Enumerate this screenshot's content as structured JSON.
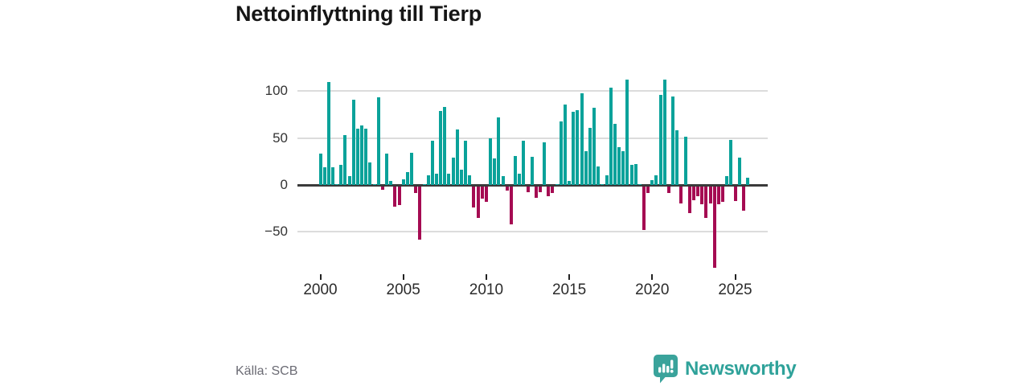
{
  "title": "Nettoinflyttning till Tierp",
  "source": "Källa: SCB",
  "branding": {
    "wordmark": "Newsworthy",
    "logo_icon": "speech-bubble-bar-chart-icon"
  },
  "colors": {
    "positive": "#0aa29a",
    "negative": "#a50b52",
    "axis": "#3a3a3a",
    "grid": "#dcdcdc",
    "tick": "#222222",
    "label": "#333333",
    "title_text": "#161616",
    "muted_text": "#6b6b74",
    "brand": "#2fa29a",
    "background": "#ffffff"
  },
  "chart_data": {
    "type": "bar",
    "title": "Nettoinflyttning till Tierp",
    "xlabel": "",
    "ylabel": "",
    "frequency": "quarterly",
    "start": "2000 Q1",
    "end": "2025 Q4",
    "grid": "horizontal",
    "legend": "none",
    "ylim": [
      -95,
      120
    ],
    "yticks": [
      {
        "label": "100",
        "value": 100
      },
      {
        "label": "50",
        "value": 50
      },
      {
        "label": "0",
        "value": 0
      },
      {
        "label": "−50",
        "value": -50
      }
    ],
    "xticks": [
      {
        "label": "2000",
        "q": 0
      },
      {
        "label": "2005",
        "q": 20
      },
      {
        "label": "2010",
        "q": 40
      },
      {
        "label": "2015",
        "q": 60
      },
      {
        "label": "2020",
        "q": 80
      },
      {
        "label": "2025",
        "q": 100
      }
    ],
    "categories": [
      "2000 Q1",
      "2000 Q2",
      "2000 Q3",
      "2000 Q4",
      "2001 Q1",
      "2001 Q2",
      "2001 Q3",
      "2001 Q4",
      "2002 Q1",
      "2002 Q2",
      "2002 Q3",
      "2002 Q4",
      "2003 Q1",
      "2003 Q2",
      "2003 Q3",
      "2003 Q4",
      "2004 Q1",
      "2004 Q2",
      "2004 Q3",
      "2004 Q4",
      "2005 Q1",
      "2005 Q2",
      "2005 Q3",
      "2005 Q4",
      "2006 Q1",
      "2006 Q2",
      "2006 Q3",
      "2006 Q4",
      "2007 Q1",
      "2007 Q2",
      "2007 Q3",
      "2007 Q4",
      "2008 Q1",
      "2008 Q2",
      "2008 Q3",
      "2008 Q4",
      "2009 Q1",
      "2009 Q2",
      "2009 Q3",
      "2009 Q4",
      "2010 Q1",
      "2010 Q2",
      "2010 Q3",
      "2010 Q4",
      "2011 Q1",
      "2011 Q2",
      "2011 Q3",
      "2011 Q4",
      "2012 Q1",
      "2012 Q2",
      "2012 Q3",
      "2012 Q4",
      "2013 Q1",
      "2013 Q2",
      "2013 Q3",
      "2013 Q4",
      "2014 Q1",
      "2014 Q2",
      "2014 Q3",
      "2014 Q4",
      "2015 Q1",
      "2015 Q2",
      "2015 Q3",
      "2015 Q4",
      "2016 Q1",
      "2016 Q2",
      "2016 Q3",
      "2016 Q4",
      "2017 Q1",
      "2017 Q2",
      "2017 Q3",
      "2017 Q4",
      "2018 Q1",
      "2018 Q2",
      "2018 Q3",
      "2018 Q4",
      "2019 Q1",
      "2019 Q2",
      "2019 Q3",
      "2019 Q4",
      "2020 Q1",
      "2020 Q2",
      "2020 Q3",
      "2020 Q4",
      "2021 Q1",
      "2021 Q2",
      "2021 Q3",
      "2021 Q4",
      "2022 Q1",
      "2022 Q2",
      "2022 Q3",
      "2022 Q4",
      "2023 Q1",
      "2023 Q2",
      "2023 Q3",
      "2023 Q4",
      "2024 Q1",
      "2024 Q2",
      "2024 Q3",
      "2024 Q4",
      "2025 Q1",
      "2025 Q2",
      "2025 Q3",
      "2025 Q4"
    ],
    "values": [
      33,
      19,
      110,
      19,
      1,
      21,
      53,
      9,
      91,
      60,
      63,
      60,
      24,
      1,
      93,
      -4,
      33,
      4,
      -22,
      -20,
      6,
      14,
      34,
      -7,
      -57,
      1,
      10,
      47,
      12,
      79,
      83,
      12,
      29,
      59,
      16,
      47,
      10,
      -23,
      -34,
      -13,
      -17,
      50,
      28,
      72,
      9,
      -5,
      -41,
      31,
      12,
      47,
      -6,
      30,
      -12,
      -6,
      45,
      -11,
      -7,
      1,
      68,
      86,
      4,
      78,
      80,
      98,
      36,
      61,
      82,
      20,
      1,
      10,
      104,
      65,
      40,
      36,
      112,
      21,
      22,
      1,
      -47,
      -7,
      5,
      10,
      96,
      112,
      -7,
      94,
      58,
      -18,
      51,
      -29,
      -15,
      -11,
      -19,
      -34,
      -18,
      -87,
      -19,
      -17,
      9,
      48,
      -16,
      29,
      -26,
      8
    ]
  }
}
